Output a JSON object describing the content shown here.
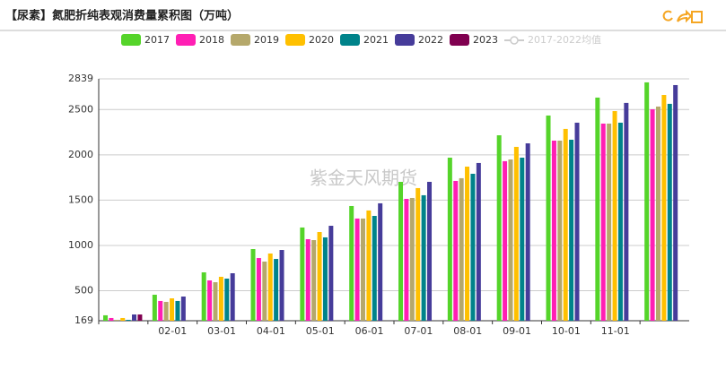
{
  "chart_data": {
    "type": "bar",
    "title": "【尿素】氮肥折纯表观消费量累积图（万吨）",
    "watermark": "紫金天风期货",
    "categories": [
      null,
      "02-01",
      "03-01",
      "04-01",
      "05-01",
      "06-01",
      "07-01",
      "08-01",
      "09-01",
      "10-01",
      "11-01",
      null
    ],
    "series": [
      {
        "name": "2017",
        "color": "#55d42a",
        "values": [
          229,
          456,
          703,
          960,
          1198,
          1435,
          1702,
          1969,
          2216,
          2434,
          2632,
          2800
        ]
      },
      {
        "name": "2018",
        "color": "#ff1fb4",
        "values": [
          199,
          387,
          614,
          861,
          1069,
          1297,
          1514,
          1712,
          1930,
          2157,
          2345,
          2503
        ]
      },
      {
        "name": "2019",
        "color": "#b5a86b",
        "values": [
          179,
          377,
          594,
          822,
          1059,
          1297,
          1524,
          1742,
          1949,
          2157,
          2345,
          2533
        ]
      },
      {
        "name": "2020",
        "color": "#ffc000",
        "values": [
          199,
          416,
          654,
          911,
          1148,
          1386,
          1633,
          1870,
          2088,
          2286,
          2483,
          2661
        ]
      },
      {
        "name": "2021",
        "color": "#00838a",
        "values": [
          179,
          387,
          634,
          851,
          1089,
          1326,
          1554,
          1791,
          1969,
          2167,
          2355,
          2563
        ]
      },
      {
        "name": "2022",
        "color": "#463c9a",
        "values": [
          238,
          436,
          693,
          950,
          1217,
          1465,
          1702,
          1910,
          2127,
          2355,
          2573,
          2770
        ]
      },
      {
        "name": "2023",
        "color": "#800050",
        "values": [
          238,
          null,
          null,
          null,
          null,
          null,
          null,
          null,
          null,
          null,
          null,
          null
        ]
      }
    ],
    "hidden_series": [
      {
        "name": "2017-2022均值",
        "color": "#cccccc"
      }
    ],
    "ylim": [
      169,
      2839
    ],
    "yticks": [
      169,
      500,
      1000,
      1500,
      2000,
      2500,
      2839
    ],
    "grid": true
  }
}
